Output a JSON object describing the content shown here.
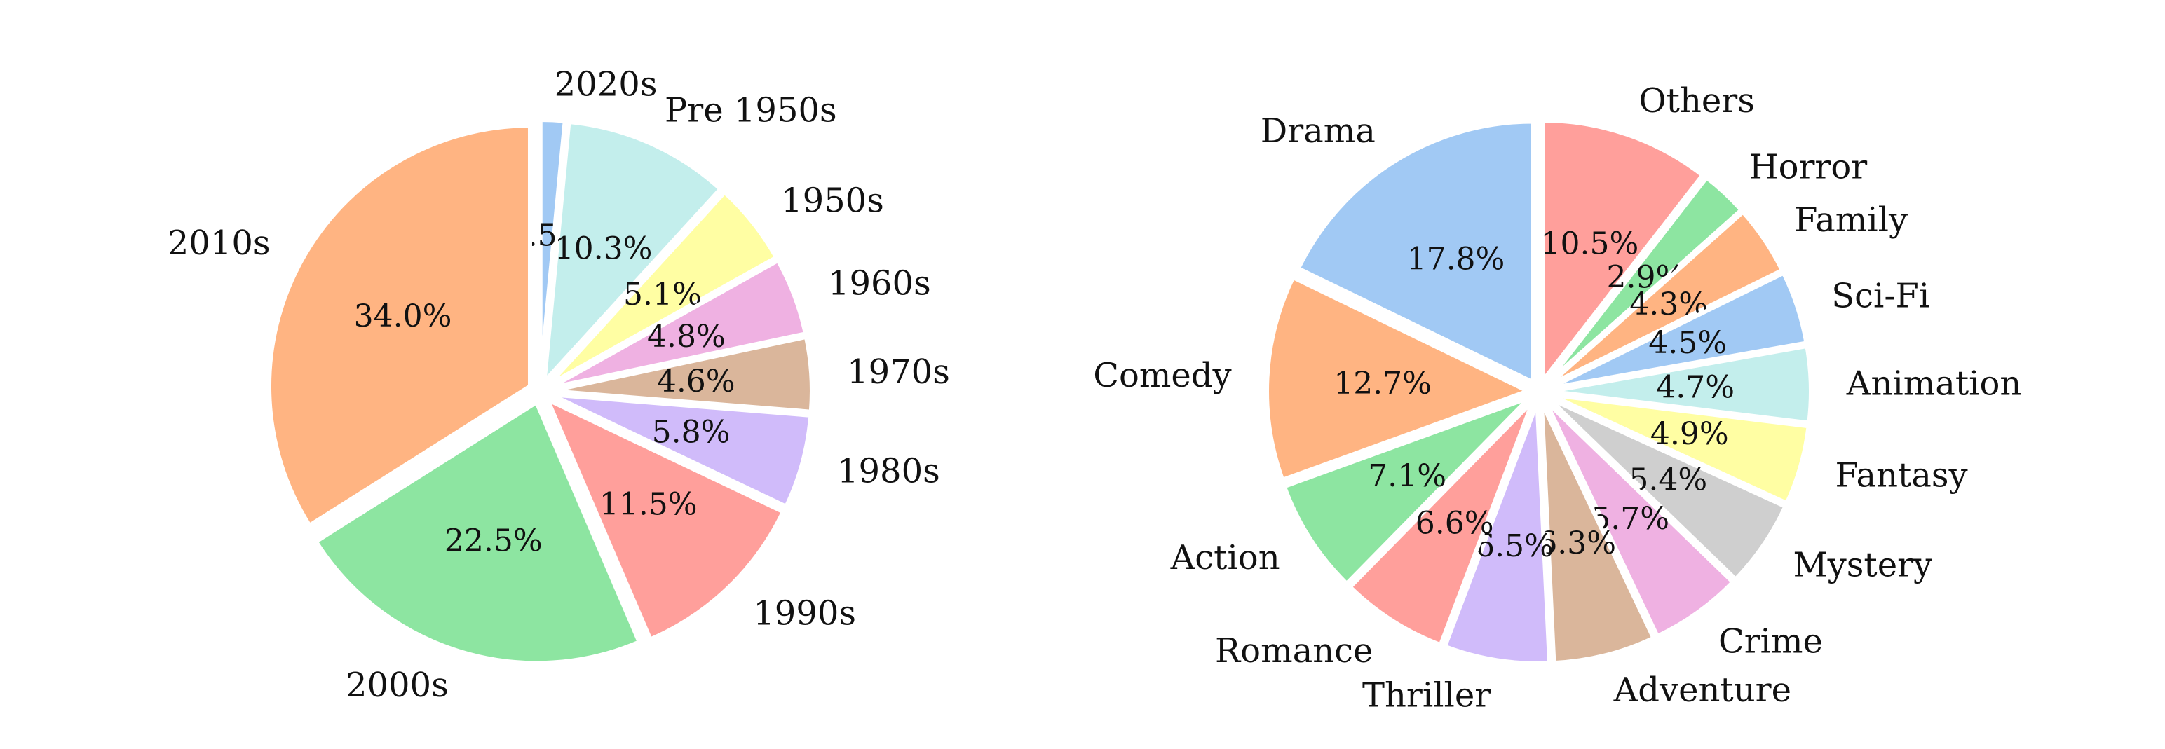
{
  "chart_data": [
    {
      "type": "pie",
      "title": "",
      "start_angle_deg": 90,
      "direction": "clockwise",
      "categories": [
        "2020s",
        "Pre 1950s",
        "1950s",
        "1960s",
        "1970s",
        "1980s",
        "1990s",
        "2000s",
        "2010s"
      ],
      "values": [
        1.5,
        10.3,
        5.1,
        4.8,
        4.6,
        5.8,
        11.5,
        22.5,
        34.0
      ],
      "value_labels": [
        "1.5%",
        "10.3%",
        "5.1%",
        "4.8%",
        "4.6%",
        "5.8%",
        "11.5%",
        "22.5%",
        "34.0%"
      ],
      "colors": [
        "#a1c9f4",
        "#c3eeec",
        "#fffea3",
        "#efb1e2",
        "#dab69b",
        "#d0bbfa",
        "#ff9f9b",
        "#8de5a1",
        "#ffb482"
      ]
    },
    {
      "type": "pie",
      "title": "",
      "start_angle_deg": 90,
      "direction": "clockwise",
      "categories": [
        "Others",
        "Horror",
        "Family",
        "Sci-Fi",
        "Animation",
        "Fantasy",
        "Mystery",
        "Crime",
        "Adventure",
        "Thriller",
        "Romance",
        "Action",
        "Comedy",
        "Drama"
      ],
      "values": [
        10.5,
        2.9,
        4.3,
        4.5,
        4.7,
        4.9,
        5.4,
        5.7,
        6.3,
        6.5,
        6.6,
        7.1,
        12.7,
        17.8
      ],
      "value_labels": [
        "10.5%",
        "2.9%",
        "4.3%",
        "4.5%",
        "4.7%",
        "4.9%",
        "5.4%",
        "5.7%",
        "6.3%",
        "6.5%",
        "6.6%",
        "7.1%",
        "12.7%",
        "17.8%"
      ],
      "colors": [
        "#ff9f9b",
        "#8de5a1",
        "#ffb482",
        "#a1c9f4",
        "#c3eeec",
        "#fffea3",
        "#cfcfcf",
        "#efb1e2",
        "#dab69b",
        "#d0bbfa",
        "#ff9f9b",
        "#8de5a1",
        "#ffb482",
        "#a1c9f4"
      ]
    }
  ]
}
